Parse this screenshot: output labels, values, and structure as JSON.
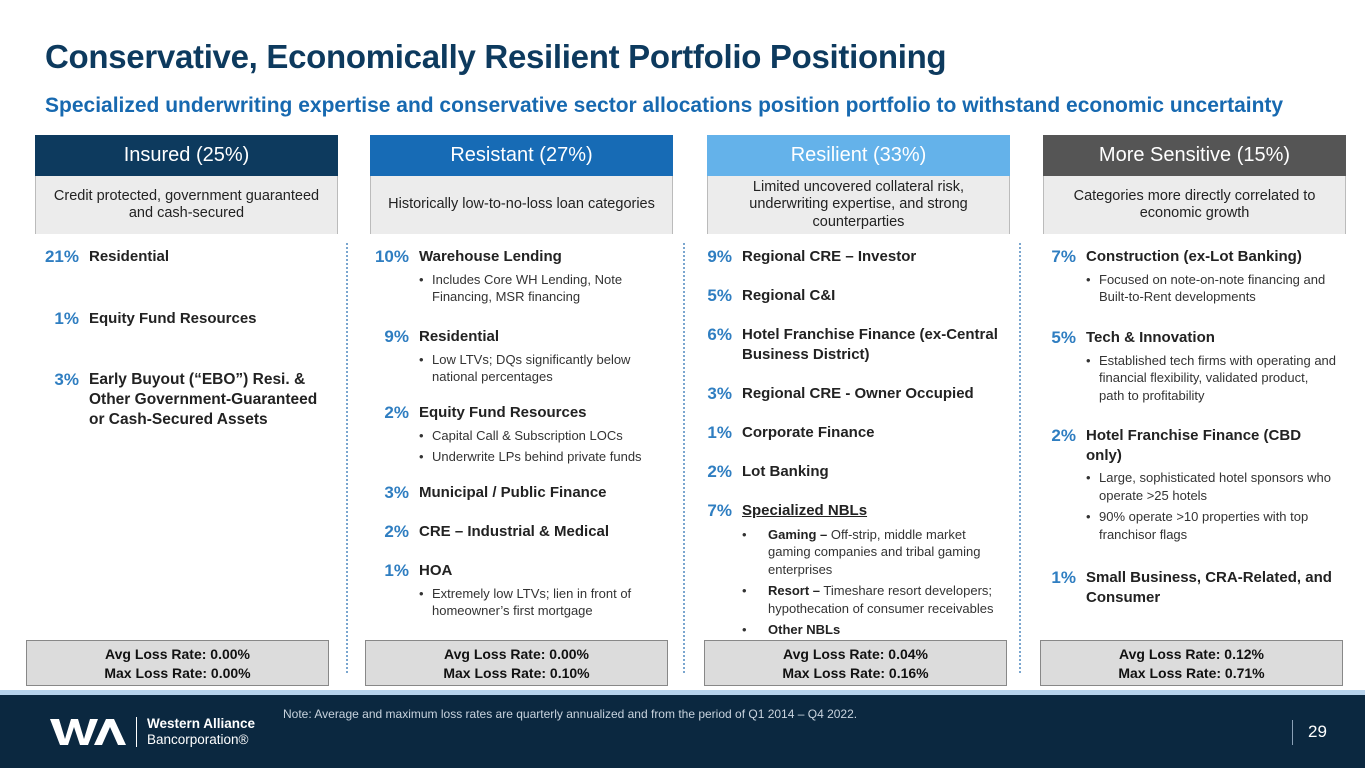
{
  "title": "Conservative, Economically Resilient Portfolio Positioning",
  "subtitle": "Specialized underwriting expertise and conservative sector allocations position portfolio to withstand economic uncertainty",
  "columns": [
    {
      "header": "Insured (25%)",
      "header_color": "#0d3a5e",
      "description": "Credit protected, government guaranteed and cash-secured",
      "items": [
        {
          "pct": "21%",
          "label": "Residential"
        },
        {
          "pct": "1%",
          "label": "Equity Fund Resources"
        },
        {
          "pct": "3%",
          "label": "Early Buyout (“EBO”) Resi. & Other Government-Guaranteed or Cash-Secured Assets"
        }
      ],
      "avg": "Avg Loss Rate: 0.00%",
      "max": "Max Loss Rate: 0.00%"
    },
    {
      "header": "Resistant (27%)",
      "header_color": "#176bb5",
      "description": "Historically low-to-no-loss loan categories",
      "items": [
        {
          "pct": "10%",
          "label": "Warehouse Lending",
          "bullet1": "Includes Core WH Lending, Note Financing, MSR financing"
        },
        {
          "pct": "9%",
          "label": "Residential",
          "bullet1": "Low LTVs; DQs significantly below national percentages"
        },
        {
          "pct": "2%",
          "label": "Equity Fund Resources",
          "bullet1": "Capital Call & Subscription LOCs",
          "bullet2": "Underwrite LPs behind private funds"
        },
        {
          "pct": "3%",
          "label": "Municipal / Public Finance"
        },
        {
          "pct": "2%",
          "label": "CRE – Industrial & Medical"
        },
        {
          "pct": "1%",
          "label": "HOA",
          "bullet1": "Extremely low LTVs; lien in front of homeowner’s first mortgage"
        }
      ],
      "avg": "Avg Loss Rate: 0.00%",
      "max": "Max Loss Rate: 0.10%"
    },
    {
      "header": "Resilient (33%)",
      "header_color": "#64b2ea",
      "description": "Limited uncovered collateral risk, underwriting expertise, and strong counterparties",
      "items": [
        {
          "pct": "9%",
          "label": "Regional CRE – Investor"
        },
        {
          "pct": "5%",
          "label": "Regional C&I"
        },
        {
          "pct": "6%",
          "label": "Hotel Franchise Finance (ex-Central Business District)"
        },
        {
          "pct": "3%",
          "label": "Regional CRE - Owner Occupied"
        },
        {
          "pct": "1%",
          "label": "Corporate Finance"
        },
        {
          "pct": "2%",
          "label": "Lot Banking"
        },
        {
          "pct": "7%",
          "label": "Specialized NBLs",
          "sub1_bold": "Gaming –",
          "sub1_text": "Off-strip, middle market gaming companies and tribal gaming enterprises",
          "sub2_bold": "Resort –",
          "sub2_text": "Timeshare resort developers; hypothecation of consumer receivables",
          "sub3_bold": "Other NBLs"
        }
      ],
      "avg": "Avg Loss Rate: 0.04%",
      "max": "Max Loss Rate: 0.16%"
    },
    {
      "header": "More Sensitive (15%)",
      "header_color": "#555555",
      "description": "Categories more directly correlated to economic growth",
      "items": [
        {
          "pct": "7%",
          "label": "Construction (ex-Lot Banking)",
          "bullet1": "Focused on note-on-note financing and Built-to-Rent developments"
        },
        {
          "pct": "5%",
          "label": "Tech & Innovation",
          "bullet1": "Established tech firms with operating and financial flexibility, validated product, path to profitability"
        },
        {
          "pct": "2%",
          "label": "Hotel Franchise Finance (CBD only)",
          "bullet1": "Large, sophisticated hotel sponsors who operate >25 hotels",
          "bullet2": "90% operate >10 properties with top franchisor flags"
        },
        {
          "pct": "1%",
          "label": "Small Business, CRA-Related, and Consumer"
        }
      ],
      "avg": "Avg Loss Rate: 0.12%",
      "max": "Max Loss Rate: 0.71%"
    }
  ],
  "footer": {
    "note": "Note: Average and maximum loss rates are quarterly annualized and from the period of Q1 2014 – Q4 2022.",
    "logo_line1": "Western Alliance",
    "logo_line2": "Bancorporation®",
    "page_number": "29"
  }
}
